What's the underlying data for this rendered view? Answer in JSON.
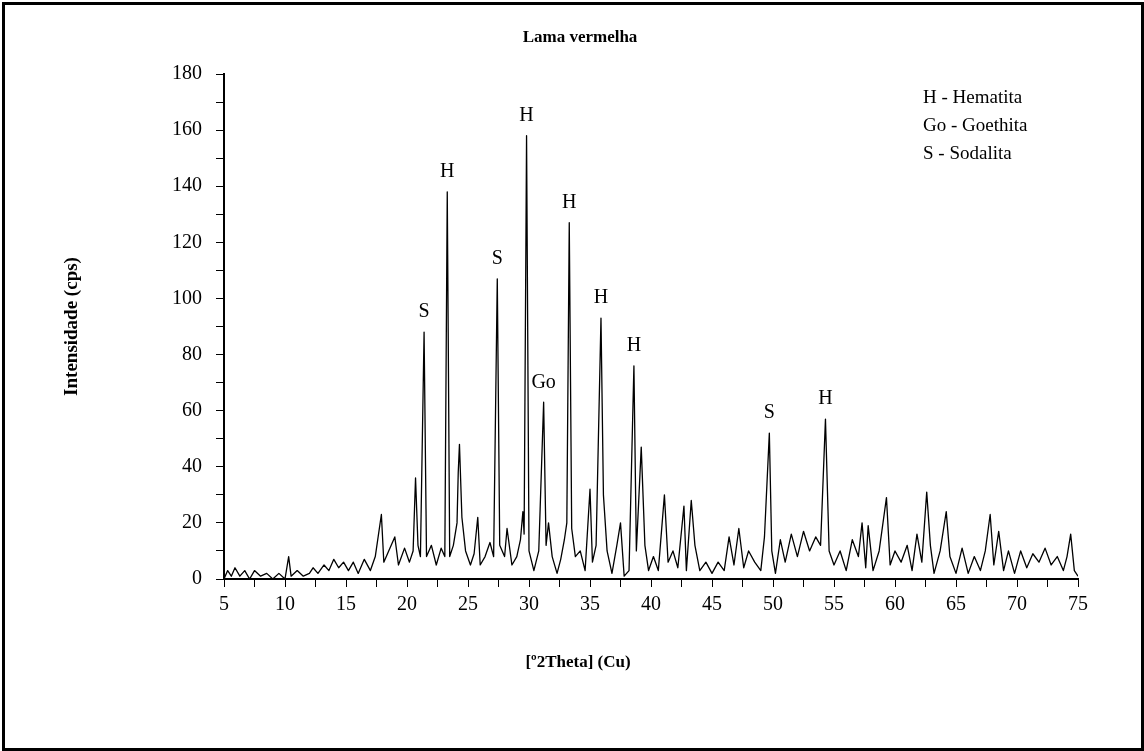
{
  "chart_data": {
    "type": "line",
    "title": "Lama vermelha",
    "xlabel": "[º2Theta] (Cu)",
    "ylabel": "Intensidade (cps)",
    "x": [
      5,
      5.3,
      5.6,
      5.9,
      6.3,
      6.7,
      7.1,
      7.5,
      8,
      8.5,
      9,
      9.5,
      10,
      10.3,
      10.5,
      11,
      11.5,
      12,
      12.3,
      12.7,
      13.2,
      13.6,
      14,
      14.4,
      14.8,
      15.2,
      15.6,
      16,
      16.5,
      17,
      17.4,
      17.9,
      18.1,
      18.5,
      19,
      19.3,
      19.8,
      20.2,
      20.5,
      20.7,
      20.9,
      21.1,
      21.4,
      21.6,
      22,
      22.4,
      22.8,
      23.1,
      23.3,
      23.5,
      23.8,
      24.1,
      24.2,
      24.3,
      24.5,
      24.8,
      25.2,
      25.5,
      25.8,
      26,
      26.4,
      26.8,
      27.1,
      27.4,
      27.6,
      28,
      28.2,
      28.6,
      29,
      29.3,
      29.5,
      29.6,
      29.8,
      30,
      30.4,
      30.8,
      31.2,
      31.4,
      31.6,
      31.9,
      32.3,
      32.6,
      32.9,
      33.1,
      33.3,
      33.5,
      33.8,
      34.2,
      34.6,
      35,
      35.2,
      35.5,
      35.9,
      36.1,
      36.4,
      36.8,
      37.2,
      37.5,
      37.8,
      38.2,
      38.6,
      38.8,
      39.2,
      39.5,
      39.8,
      40.2,
      40.6,
      41.1,
      41.4,
      41.8,
      42.2,
      42.7,
      42.9,
      43.3,
      43.6,
      44,
      44.5,
      45,
      45.5,
      46,
      46.4,
      46.8,
      47.2,
      47.6,
      48,
      48.5,
      49,
      49.3,
      49.7,
      49.9,
      50.2,
      50.6,
      51,
      51.5,
      52,
      52.5,
      53,
      53.5,
      53.9,
      54.3,
      54.6,
      55,
      55.5,
      56,
      56.5,
      57,
      57.3,
      57.6,
      57.8,
      58.2,
      58.7,
      59.3,
      59.6,
      60,
      60.5,
      61,
      61.4,
      61.8,
      62.2,
      62.6,
      62.9,
      63.2,
      63.7,
      64.2,
      64.5,
      65,
      65.5,
      66,
      66.5,
      67,
      67.4,
      67.8,
      68.1,
      68.5,
      68.9,
      69.3,
      69.8,
      70.3,
      70.8,
      71.3,
      71.8,
      72.3,
      72.8,
      73.3,
      73.8,
      74.1,
      74.4,
      74.7,
      75
    ],
    "series": [
      {
        "color": "#000000",
        "values": [
          0,
          3,
          1,
          4,
          1,
          3,
          0,
          3,
          1,
          2,
          0,
          2,
          0,
          8,
          1,
          3,
          1,
          2,
          4,
          2,
          5,
          3,
          7,
          4,
          6,
          3,
          6,
          2,
          7,
          3,
          8,
          23,
          6,
          10,
          15,
          5,
          11,
          6,
          10,
          36,
          12,
          8,
          88,
          8,
          12,
          5,
          11,
          8,
          138,
          8,
          12,
          20,
          38,
          48,
          22,
          10,
          5,
          9,
          22,
          5,
          8,
          13,
          8,
          107,
          12,
          8,
          18,
          5,
          8,
          14,
          24,
          16,
          158,
          10,
          3,
          10,
          63,
          12,
          20,
          8,
          2,
          7,
          14,
          20,
          127,
          18,
          8,
          10,
          3,
          32,
          6,
          12,
          93,
          30,
          10,
          2,
          12,
          20,
          1,
          3,
          76,
          10,
          47,
          12,
          3,
          8,
          3,
          30,
          6,
          10,
          4,
          26,
          3,
          28,
          12,
          3,
          6,
          2,
          6,
          3,
          15,
          5,
          18,
          4,
          10,
          6,
          3,
          15,
          52,
          10,
          2,
          14,
          6,
          16,
          8,
          17,
          10,
          15,
          12,
          57,
          10,
          5,
          10,
          3,
          14,
          8,
          20,
          4,
          19,
          3,
          10,
          29,
          5,
          10,
          6,
          12,
          3,
          16,
          6,
          31,
          12,
          2,
          10,
          24,
          8,
          2,
          11,
          2,
          8,
          3,
          10,
          23,
          5,
          17,
          3,
          10,
          2,
          10,
          4,
          9,
          6,
          11,
          5,
          8,
          3,
          8,
          16,
          3,
          1
        ]
      }
    ],
    "xlim": [
      5,
      75
    ],
    "xticks": [
      5,
      {
        "value": 7.5,
        "label": null
      },
      10,
      {
        "value": 12.5,
        "label": null
      },
      15,
      {
        "value": 17.5,
        "label": null
      },
      20,
      {
        "value": 22.5,
        "label": null
      },
      25,
      {
        "value": 27.5,
        "label": null
      },
      30,
      {
        "value": 32.5,
        "label": null
      },
      35,
      {
        "value": 37.5,
        "label": null
      },
      40,
      {
        "value": 42.5,
        "label": null
      },
      45,
      {
        "value": 47.5,
        "label": null
      },
      50,
      {
        "value": 52.5,
        "label": null
      },
      55,
      {
        "value": 57.5,
        "label": null
      },
      60,
      {
        "value": 62.5,
        "label": null
      },
      65,
      {
        "value": 67.5,
        "label": null
      },
      70,
      {
        "value": 72.5,
        "label": null
      },
      75
    ],
    "ylim": [
      0,
      180
    ],
    "yticks": [
      0,
      {
        "value": 10,
        "label": null
      },
      20,
      {
        "value": 30,
        "label": null
      },
      40,
      {
        "value": 50,
        "label": null
      },
      60,
      {
        "value": 70,
        "label": null
      },
      80,
      {
        "value": 90,
        "label": null
      },
      100,
      {
        "value": 110,
        "label": null
      },
      120,
      {
        "value": 130,
        "label": null
      },
      140,
      {
        "value": 150,
        "label": null
      },
      160,
      {
        "value": 170,
        "label": null
      },
      180
    ],
    "grid": false,
    "legend": false,
    "annotations": [
      {
        "text": "S",
        "x": 21.4,
        "y": 88
      },
      {
        "text": "H",
        "x": 23.3,
        "y": 138
      },
      {
        "text": "S",
        "x": 27.4,
        "y": 107
      },
      {
        "text": "H",
        "x": 29.8,
        "y": 158
      },
      {
        "text": "Go",
        "x": 31.2,
        "y": 63
      },
      {
        "text": "H",
        "x": 33.3,
        "y": 127
      },
      {
        "text": "H",
        "x": 35.9,
        "y": 93
      },
      {
        "text": "H",
        "x": 38.6,
        "y": 76
      },
      {
        "text": "S",
        "x": 49.7,
        "y": 52
      },
      {
        "text": "H",
        "x": 54.3,
        "y": 57
      },
      "H - Hematita",
      "Go - Goethita",
      "S - Sodalita"
    ]
  }
}
